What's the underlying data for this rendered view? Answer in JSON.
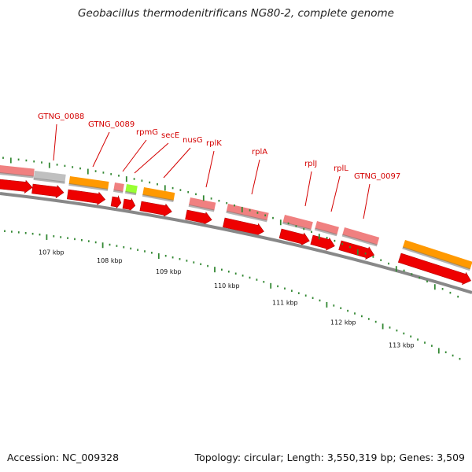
{
  "title": "Geobacillus thermodenitrificans NG80-2, complete genome",
  "accession": "Accession: NC_009328",
  "summary": "Topology: circular; Length: 3,550,319 bp; Genes: 3,509",
  "colors": {
    "gene_red": "#ee0000",
    "pink": "#f08080",
    "orange": "#ff9900",
    "gray_feature": "#c0c0c0",
    "lime": "#99ff33",
    "backbone": "#888888",
    "tick_green": "#338833",
    "label_red": "#d40000"
  },
  "scale_labels": [
    "107 kbp",
    "108 kbp",
    "109 kbp",
    "110 kbp",
    "111 kbp",
    "112 kbp",
    "113 kbp"
  ],
  "gene_labels": [
    "GTNG_0088",
    "GTNG_0089",
    "rpmG",
    "secE",
    "nusG",
    "rplK",
    "rplA",
    "rplJ",
    "rplL",
    "GTNG_0097"
  ]
}
